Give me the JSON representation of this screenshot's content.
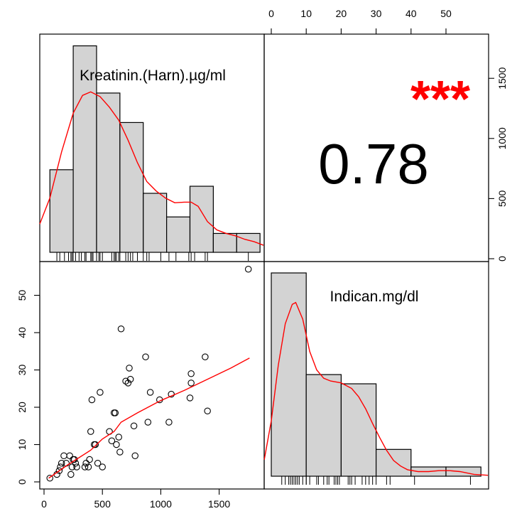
{
  "chart_data": {
    "type": "scatter-matrix",
    "variables": [
      "Kreatinin.(Harn).µg/ml",
      "Indican.mg/dl"
    ],
    "correlation": {
      "value": "0.78",
      "stars": "***"
    },
    "x_ticks_bottom": [
      "0",
      "500",
      "1000",
      "1500"
    ],
    "x_ticks_top": [
      "0",
      "10",
      "20",
      "30",
      "40",
      "50"
    ],
    "y_ticks_left": [
      "0",
      "10",
      "20",
      "30",
      "40",
      "50"
    ],
    "y_ticks_right": [
      "0",
      "500",
      "1000",
      "1500"
    ],
    "kreatinin_hist": {
      "bins": [
        [
          50,
          250
        ],
        [
          250,
          450
        ],
        [
          450,
          650
        ],
        [
          650,
          850
        ],
        [
          850,
          1050
        ],
        [
          1050,
          1250
        ],
        [
          1250,
          1450
        ],
        [
          1450,
          1650
        ],
        [
          1650,
          1850
        ]
      ],
      "heights": [
        7,
        17.5,
        13.5,
        11,
        5,
        3,
        5.6,
        1.6,
        1.6
      ],
      "density": [
        [
          -40,
          2.4
        ],
        [
          50,
          4.6
        ],
        [
          150,
          8.5
        ],
        [
          250,
          11.8
        ],
        [
          330,
          13.3
        ],
        [
          400,
          13.6
        ],
        [
          480,
          13.2
        ],
        [
          560,
          12.3
        ],
        [
          640,
          11.2
        ],
        [
          720,
          9.5
        ],
        [
          800,
          7.6
        ],
        [
          880,
          6.0
        ],
        [
          960,
          5.2
        ],
        [
          1040,
          4.6
        ],
        [
          1120,
          4.2
        ],
        [
          1200,
          4.25
        ],
        [
          1260,
          4.25
        ],
        [
          1320,
          3.9
        ],
        [
          1400,
          2.6
        ],
        [
          1480,
          1.9
        ],
        [
          1560,
          1.6
        ],
        [
          1640,
          1.4
        ],
        [
          1720,
          1.1
        ],
        [
          1800,
          0.9
        ],
        [
          1880,
          0.6
        ]
      ],
      "rug": [
        110,
        135,
        175,
        210,
        230,
        240,
        250,
        270,
        300,
        320,
        350,
        360,
        400,
        410,
        420,
        450,
        470,
        480,
        500,
        580,
        600,
        610,
        620,
        640,
        650,
        700,
        720,
        740,
        760,
        800,
        850,
        880,
        900,
        1000,
        1070,
        1130,
        1240,
        1260,
        1290,
        1380,
        1400,
        1750
      ]
    },
    "indican_hist": {
      "bins": [
        [
          0,
          10
        ],
        [
          10,
          20
        ],
        [
          20,
          30
        ],
        [
          30,
          40
        ],
        [
          40,
          50
        ],
        [
          50,
          60
        ]
      ],
      "heights": [
        22,
        11,
        10,
        2.9,
        1,
        1
      ],
      "density": [
        [
          -2,
          1.8
        ],
        [
          0,
          6
        ],
        [
          2,
          12
        ],
        [
          4,
          16.5
        ],
        [
          6,
          18.6
        ],
        [
          7,
          18.8
        ],
        [
          9,
          17
        ],
        [
          11,
          13.5
        ],
        [
          13,
          11.5
        ],
        [
          15,
          10.6
        ],
        [
          17,
          10.3
        ],
        [
          20,
          10.1
        ],
        [
          23,
          9.5
        ],
        [
          25,
          8.6
        ],
        [
          27,
          7.3
        ],
        [
          29,
          5.7
        ],
        [
          31,
          4.2
        ],
        [
          33,
          2.8
        ],
        [
          35,
          1.7
        ],
        [
          37,
          1.1
        ],
        [
          39,
          0.7
        ],
        [
          42,
          0.5
        ],
        [
          45,
          0.5
        ],
        [
          48,
          0.6
        ],
        [
          51,
          0.6
        ],
        [
          54,
          0.5
        ],
        [
          58,
          0.2
        ],
        [
          62,
          0.1
        ]
      ],
      "rug": [
        3,
        4,
        5,
        5.5,
        6,
        6.5,
        7,
        7.5,
        8,
        9,
        10,
        10,
        11,
        13,
        13.5,
        15,
        16,
        16.5,
        18,
        18.5,
        19,
        19.5,
        22,
        22.5,
        23,
        24,
        26,
        27,
        28,
        29,
        30,
        33,
        34,
        41,
        57
      ]
    },
    "scatter_points": [
      [
        50,
        1
      ],
      [
        110,
        2
      ],
      [
        130,
        3
      ],
      [
        140,
        4
      ],
      [
        150,
        5
      ],
      [
        170,
        7
      ],
      [
        190,
        5
      ],
      [
        220,
        7
      ],
      [
        230,
        2
      ],
      [
        240,
        4
      ],
      [
        250,
        6
      ],
      [
        260,
        6
      ],
      [
        270,
        5
      ],
      [
        280,
        4
      ],
      [
        350,
        4
      ],
      [
        360,
        5
      ],
      [
        380,
        4
      ],
      [
        390,
        6
      ],
      [
        400,
        13.5
      ],
      [
        410,
        22
      ],
      [
        430,
        10
      ],
      [
        440,
        10
      ],
      [
        460,
        5
      ],
      [
        480,
        24
      ],
      [
        500,
        4
      ],
      [
        560,
        13.5
      ],
      [
        580,
        11
      ],
      [
        600,
        18.5
      ],
      [
        610,
        18.5
      ],
      [
        620,
        10
      ],
      [
        640,
        12
      ],
      [
        650,
        8
      ],
      [
        660,
        41
      ],
      [
        700,
        27
      ],
      [
        720,
        26.5
      ],
      [
        730,
        30.5
      ],
      [
        740,
        27.5
      ],
      [
        770,
        15
      ],
      [
        780,
        7
      ],
      [
        870,
        33.5
      ],
      [
        890,
        16
      ],
      [
        910,
        24
      ],
      [
        990,
        22
      ],
      [
        1070,
        16
      ],
      [
        1090,
        23.5
      ],
      [
        1250,
        22.5
      ],
      [
        1260,
        26.5
      ],
      [
        1260,
        29
      ],
      [
        1380,
        33.5
      ],
      [
        1400,
        19
      ],
      [
        1750,
        57
      ]
    ],
    "smooth_line": [
      [
        40,
        1
      ],
      [
        200,
        4.5
      ],
      [
        400,
        8.5
      ],
      [
        500,
        11.5
      ],
      [
        600,
        13.5
      ],
      [
        660,
        16
      ],
      [
        800,
        18.5
      ],
      [
        1000,
        21.8
      ],
      [
        1200,
        24.5
      ],
      [
        1400,
        27.5
      ],
      [
        1600,
        30.5
      ],
      [
        1760,
        33.2
      ]
    ]
  }
}
